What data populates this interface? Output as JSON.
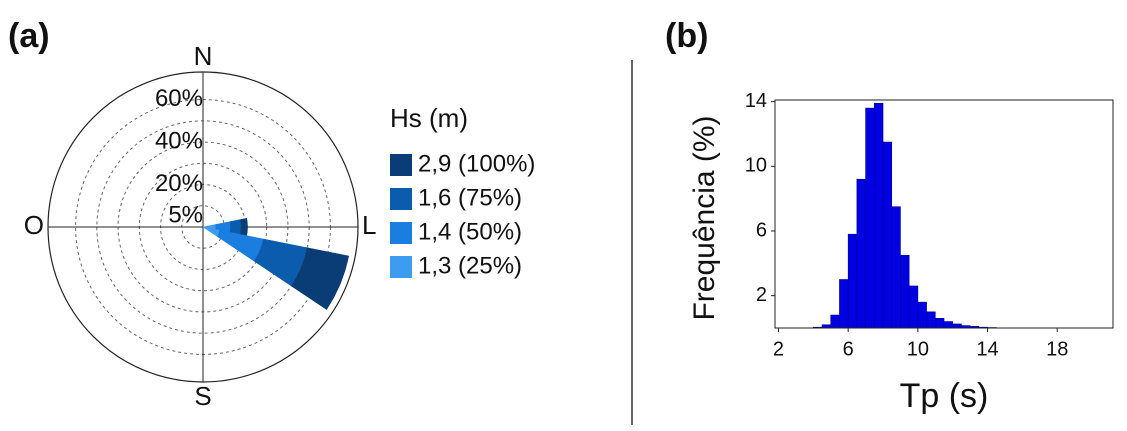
{
  "chart_data": [
    {
      "type": "rose",
      "title": "(a)",
      "direction_labels": [
        "N",
        "L",
        "S",
        "O"
      ],
      "theta": [
        90,
        112.5
      ],
      "sector_width": 22.5,
      "rlim": [
        0,
        73
      ],
      "rticks": [
        {
          "value": 5,
          "label": "5%"
        },
        {
          "value": 20,
          "label": "20%"
        },
        {
          "value": 40,
          "label": "40%"
        },
        {
          "value": 60,
          "label": "60%"
        }
      ],
      "rgrid": [
        10,
        20,
        30,
        40,
        50,
        60
      ],
      "legend_title": "Hs (m)",
      "series": [
        {
          "name": "2,9 (100%)",
          "color": "#0a3d75",
          "values": [
            3,
            20
          ]
        },
        {
          "name": "1,6 (75%)",
          "color": "#0b5cad",
          "values": [
            5,
            21
          ]
        },
        {
          "name": "1,4 (50%)",
          "color": "#1a7ee0",
          "values": [
            7,
            21
          ]
        },
        {
          "name": "1,3 (25%)",
          "color": "#3d9bf0",
          "values": [
            6,
            8
          ]
        }
      ]
    },
    {
      "type": "histogram",
      "title": "(b)",
      "x_label": "Tp (s)",
      "y_label": "Frequência (%)",
      "bins": [
        4,
        4.5,
        5,
        5.5,
        6,
        6.5,
        7,
        7.5,
        8,
        8.5,
        9,
        9.5,
        10,
        10.5,
        11,
        11.5,
        12,
        12.5,
        13,
        13.5,
        14,
        14.5
      ],
      "values": [
        0.05,
        0.2,
        0.8,
        3.0,
        5.8,
        9.2,
        13.6,
        13.9,
        11.5,
        7.5,
        4.5,
        2.6,
        1.6,
        1.0,
        0.6,
        0.4,
        0.25,
        0.15,
        0.1,
        0.05,
        0.03
      ],
      "color": "#0000e0",
      "xlim": [
        1.8,
        21.2
      ],
      "xticks": [
        2,
        6,
        10,
        14,
        18
      ],
      "ylim": [
        0,
        14.1
      ],
      "yticks": [
        2,
        6,
        10,
        14
      ]
    }
  ]
}
